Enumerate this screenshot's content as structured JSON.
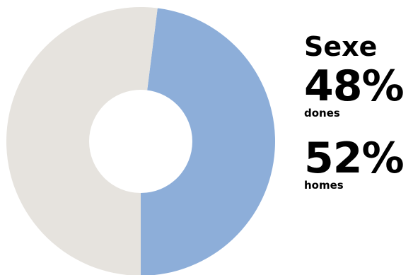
{
  "chart_data": {
    "type": "pie",
    "title": "Sexe",
    "categories": [
      "dones",
      "homes"
    ],
    "values": [
      48,
      52
    ],
    "value_labels": [
      "48%",
      "52%"
    ],
    "colors": [
      "#8daed9",
      "#e6e3de"
    ],
    "hole_color": "#ffffff",
    "legend_position": "right"
  }
}
